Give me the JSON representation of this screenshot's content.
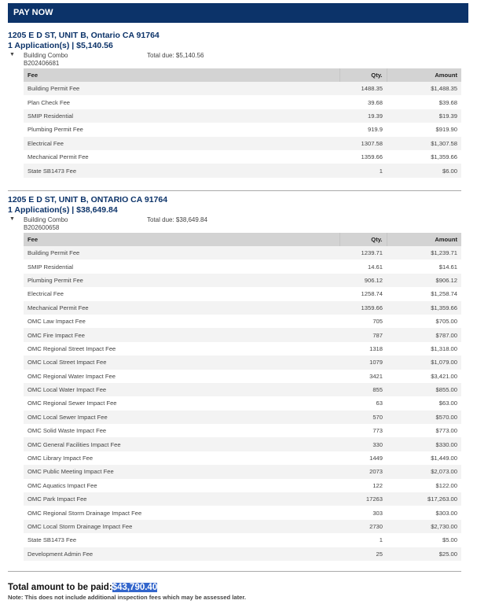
{
  "header": {
    "title": "PAY NOW"
  },
  "columns": {
    "fee": "Fee",
    "qty": "Qty.",
    "amount": "Amount"
  },
  "sections": [
    {
      "address": "1205 E D ST, UNIT B, Ontario CA 91764",
      "summary": "1 Application(s) | $5,140.56",
      "app_type": "Building Combo",
      "app_number": "B202406681",
      "total_due": "Total due: $5,140.56",
      "rows": [
        [
          "Building Permit Fee",
          "1488.35",
          "$1,488.35"
        ],
        [
          "Plan Check Fee",
          "39.68",
          "$39.68"
        ],
        [
          "SMIP Residential",
          "19.39",
          "$19.39"
        ],
        [
          "Plumbing Permit Fee",
          "919.9",
          "$919.90"
        ],
        [
          "Electrical Fee",
          "1307.58",
          "$1,307.58"
        ],
        [
          "Mechanical Permit Fee",
          "1359.66",
          "$1,359.66"
        ],
        [
          "State SB1473 Fee",
          "1",
          "$6.00"
        ]
      ]
    },
    {
      "address": "1205 E D ST, UNIT B, ONTARIO CA 91764",
      "summary": "1 Application(s) | $38,649.84",
      "app_type": "Building Combo",
      "app_number": "B202600658",
      "total_due": "Total due: $38,649.84",
      "rows": [
        [
          "Building Permit Fee",
          "1239.71",
          "$1,239.71"
        ],
        [
          "SMIP Residential",
          "14.61",
          "$14.61"
        ],
        [
          "Plumbing Permit Fee",
          "906.12",
          "$906.12"
        ],
        [
          "Electrical Fee",
          "1258.74",
          "$1,258.74"
        ],
        [
          "Mechanical Permit Fee",
          "1359.66",
          "$1,359.66"
        ],
        [
          "OMC Law Impact Fee",
          "705",
          "$705.00"
        ],
        [
          "OMC Fire Impact Fee",
          "787",
          "$787.00"
        ],
        [
          "OMC Regional Street Impact Fee",
          "1318",
          "$1,318.00"
        ],
        [
          "OMC Local Street Impact Fee",
          "1079",
          "$1,079.00"
        ],
        [
          "OMC Regional Water Impact Fee",
          "3421",
          "$3,421.00"
        ],
        [
          "OMC Local Water Impact Fee",
          "855",
          "$855.00"
        ],
        [
          "OMC Regional Sewer Impact Fee",
          "63",
          "$63.00"
        ],
        [
          "OMC Local Sewer Impact Fee",
          "570",
          "$570.00"
        ],
        [
          "OMC Solid Waste Impact Fee",
          "773",
          "$773.00"
        ],
        [
          "OMC General Facilities Impact Fee",
          "330",
          "$330.00"
        ],
        [
          "OMC Library Impact Fee",
          "1449",
          "$1,449.00"
        ],
        [
          "OMC Public Meeting Impact Fee",
          "2073",
          "$2,073.00"
        ],
        [
          "OMC Aquatics Impact Fee",
          "122",
          "$122.00"
        ],
        [
          "OMC Park Impact Fee",
          "17263",
          "$17,263.00"
        ],
        [
          "OMC Regional Storm Drainage Impact Fee",
          "303",
          "$303.00"
        ],
        [
          "OMC Local Storm Drainage Impact Fee",
          "2730",
          "$2,730.00"
        ],
        [
          "State SB1473 Fee",
          "1",
          "$5.00"
        ],
        [
          "Development Admin Fee",
          "25",
          "$25.00"
        ]
      ]
    }
  ],
  "footer": {
    "total_label": "Total amount to be paid:",
    "total_value": "$43,790.40",
    "note": "Note: This does not include additional inspection fees which may be assessed later."
  }
}
